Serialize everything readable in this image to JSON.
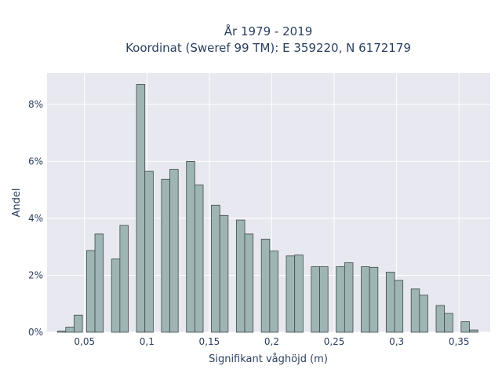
{
  "chart_data": {
    "type": "bar",
    "title": "År 1979 - 2019",
    "subtitle": "Koordinat (Sweref 99 TM): E 359220, N 6172179",
    "xlabel": "Signifikant våghöjd (m)",
    "ylabel": "Andel",
    "xlim": [
      0.02,
      0.375
    ],
    "ylim": [
      0,
      9.1
    ],
    "grid": true,
    "legend": "none",
    "x_ticks": [
      {
        "value": 0.05,
        "label": "0,05"
      },
      {
        "value": 0.1,
        "label": "0,1"
      },
      {
        "value": 0.15,
        "label": "0,15"
      },
      {
        "value": 0.2,
        "label": "0,2"
      },
      {
        "value": 0.25,
        "label": "0,25"
      },
      {
        "value": 0.3,
        "label": "0,3"
      },
      {
        "value": 0.35,
        "label": "0,35"
      }
    ],
    "y_ticks": [
      {
        "value": 0,
        "label": "0%"
      },
      {
        "value": 2,
        "label": "2%"
      },
      {
        "value": 4,
        "label": "4%"
      },
      {
        "value": 6,
        "label": "6%"
      },
      {
        "value": 8,
        "label": "8%"
      }
    ],
    "bin_width": 0.0067,
    "colors": {
      "bar_fill": "#9fb5b5",
      "bar_stroke": "#3d4a4a",
      "plot_bg": "#e8e8f0",
      "grid": "#ffffff"
    },
    "series": [
      {
        "x": [
          0.0317,
          0.0383,
          0.045,
          0.055,
          0.0617,
          0.075,
          0.0817,
          0.095,
          0.1017,
          0.115,
          0.1217,
          0.135,
          0.1417,
          0.155,
          0.1617,
          0.175,
          0.1817,
          0.195,
          0.2017,
          0.215,
          0.2217,
          0.235,
          0.2417,
          0.255,
          0.2617,
          0.275,
          0.2817,
          0.295,
          0.3017,
          0.315,
          0.3217,
          0.335,
          0.3417,
          0.355,
          0.3617,
          0.3683
        ],
        "values": [
          0.04,
          0.18,
          0.6,
          2.87,
          3.45,
          2.57,
          3.75,
          8.7,
          5.65,
          5.37,
          5.72,
          6.0,
          5.17,
          4.46,
          4.1,
          3.94,
          3.45,
          3.27,
          2.85,
          2.68,
          2.71,
          2.3,
          2.3,
          2.3,
          2.44,
          2.3,
          2.28,
          2.11,
          1.82,
          1.52,
          1.3,
          0.94,
          0.66,
          0.37,
          0.08,
          0.0
        ]
      }
    ]
  }
}
